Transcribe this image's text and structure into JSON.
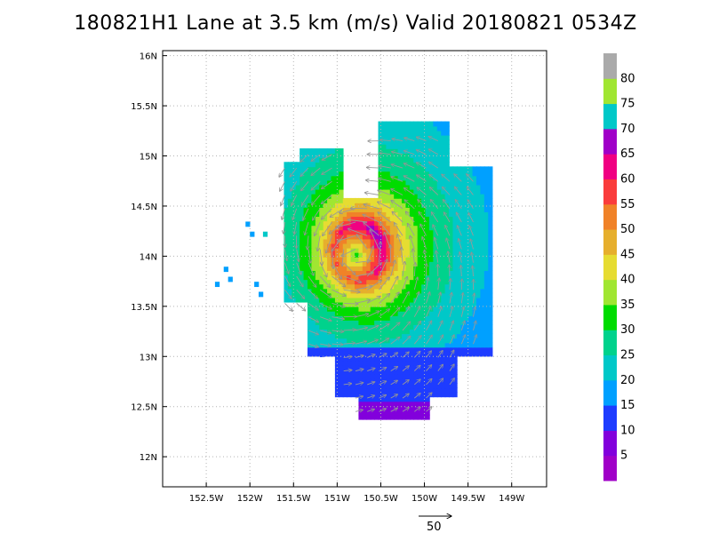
{
  "title": "180821H1 Lane at 3.5 km (m/s) Valid 20180821 0534Z",
  "chart_data": {
    "type": "heatmap",
    "title": "180821H1 Lane at 3.5 km (m/s) Valid 20180821 0534Z",
    "x_ticks": [
      {
        "value": -152.5,
        "label": "152.5W"
      },
      {
        "value": -152.0,
        "label": "152W"
      },
      {
        "value": -151.5,
        "label": "151.5W"
      },
      {
        "value": -151.0,
        "label": "151W"
      },
      {
        "value": -150.5,
        "label": "150.5W"
      },
      {
        "value": -150.0,
        "label": "150W"
      },
      {
        "value": -149.5,
        "label": "149.5W"
      },
      {
        "value": -149.0,
        "label": "149W"
      }
    ],
    "y_ticks": [
      {
        "value": 12.0,
        "label": "12N"
      },
      {
        "value": 12.5,
        "label": "12.5N"
      },
      {
        "value": 13.0,
        "label": "13N"
      },
      {
        "value": 13.5,
        "label": "13.5N"
      },
      {
        "value": 14.0,
        "label": "14N"
      },
      {
        "value": 14.5,
        "label": "14.5N"
      },
      {
        "value": 15.0,
        "label": "15N"
      },
      {
        "value": 15.5,
        "label": "15.5N"
      },
      {
        "value": 16.0,
        "label": "16N"
      }
    ],
    "xlim": [
      -153.0,
      -148.6
    ],
    "ylim": [
      11.7,
      16.05
    ],
    "grid": true,
    "storm_center": {
      "lon": -150.78,
      "lat": 14.02
    },
    "radius_of_max_wind_deg": 0.28,
    "max_wind": 62,
    "colorbar": {
      "bins": [
        {
          "min": 0,
          "max": 5,
          "color": "#a000c8"
        },
        {
          "min": 5,
          "max": 10,
          "color": "#8200dc"
        },
        {
          "min": 10,
          "max": 15,
          "color": "#1e3cff"
        },
        {
          "min": 15,
          "max": 20,
          "color": "#00a0ff"
        },
        {
          "min": 20,
          "max": 25,
          "color": "#00c8c8"
        },
        {
          "min": 25,
          "max": 30,
          "color": "#00d28c"
        },
        {
          "min": 30,
          "max": 35,
          "color": "#00dc00"
        },
        {
          "min": 35,
          "max": 40,
          "color": "#a0e632"
        },
        {
          "min": 40,
          "max": 45,
          "color": "#e6dc32"
        },
        {
          "min": 45,
          "max": 50,
          "color": "#e6af2d"
        },
        {
          "min": 50,
          "max": 55,
          "color": "#f08228"
        },
        {
          "min": 55,
          "max": 60,
          "color": "#fa3c3c"
        },
        {
          "min": 60,
          "max": 65,
          "color": "#f00082"
        },
        {
          "min": 65,
          "max": 70,
          "color": "#a000c8"
        },
        {
          "min": 70,
          "max": 75,
          "color": "#00c8c8"
        },
        {
          "min": 75,
          "max": 80,
          "color": "#a0e632"
        },
        {
          "min": 80,
          "max": 85,
          "color": "#aaaaaa"
        }
      ],
      "labels": [
        "5",
        "10",
        "15",
        "20",
        "25",
        "30",
        "35",
        "40",
        "45",
        "50",
        "55",
        "60",
        "65",
        "70",
        "75",
        "80"
      ]
    },
    "reference_vector": {
      "value": 50,
      "label": "50"
    }
  }
}
